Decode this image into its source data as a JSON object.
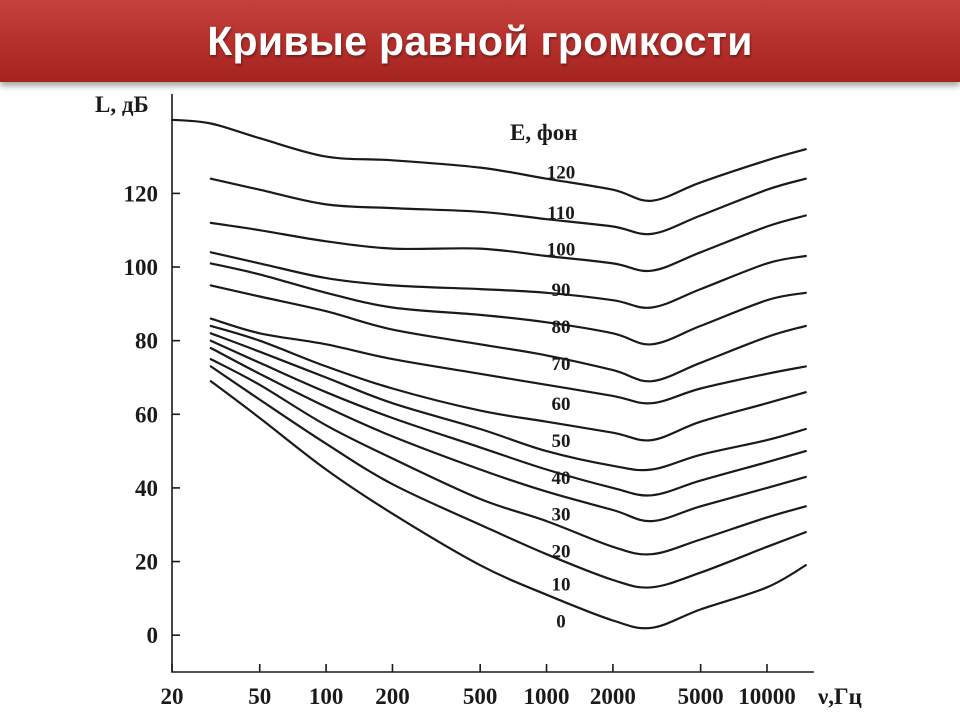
{
  "slide": {
    "title": "Кривые равной громкости"
  },
  "colors": {
    "title_bar": "#b42f2b",
    "title_text": "#ffffff",
    "ink": "#1a1a1a"
  },
  "chart_data": {
    "type": "line",
    "title": "",
    "xlabel": "ν,Гц",
    "ylabel": "L, дБ",
    "legend_title": "E, фон",
    "x_scale": "log",
    "xlim": [
      20,
      16000
    ],
    "ylim": [
      -10,
      147
    ],
    "x_ticks": [
      20,
      50,
      100,
      200,
      500,
      1000,
      2000,
      5000,
      10000
    ],
    "x_tick_labels": [
      "20",
      "50",
      "100",
      "200",
      "500",
      "1000",
      "2000",
      "5000",
      "10000"
    ],
    "y_ticks": [
      0,
      20,
      40,
      60,
      80,
      100,
      120
    ],
    "y_tick_labels": [
      "0",
      "20",
      "40",
      "60",
      "80",
      "100",
      "120"
    ],
    "grid": false,
    "x": [
      20,
      30,
      50,
      100,
      200,
      500,
      1000,
      2000,
      3000,
      5000,
      10000,
      15000
    ],
    "series": [
      {
        "name": "120",
        "values": [
          null,
          124,
          121,
          117,
          116,
          115,
          113,
          111,
          109,
          114,
          121,
          124
        ]
      },
      {
        "name": "110",
        "values": [
          null,
          112,
          110,
          107,
          105,
          105,
          103,
          101,
          99,
          104,
          111,
          114
        ]
      },
      {
        "name": "100",
        "values": [
          null,
          104,
          101,
          97,
          95,
          94,
          93,
          91,
          89,
          94,
          101,
          103
        ]
      },
      {
        "name": "90",
        "values": [
          null,
          101,
          98,
          93,
          89,
          87,
          85,
          82,
          79,
          84,
          91,
          93
        ]
      },
      {
        "name": "80",
        "values": [
          null,
          95,
          92,
          88,
          83,
          79,
          76,
          72,
          69,
          74,
          81,
          84
        ]
      },
      {
        "name": "70",
        "values": [
          null,
          86,
          82,
          79,
          75,
          71,
          68,
          65,
          63,
          67,
          71,
          73
        ]
      },
      {
        "name": "60",
        "values": [
          null,
          84,
          80,
          73,
          67,
          61,
          58,
          55,
          53,
          58,
          63,
          66
        ]
      },
      {
        "name": "50",
        "values": [
          null,
          82,
          77,
          70,
          63,
          56,
          50,
          46,
          45,
          49,
          53,
          56
        ]
      },
      {
        "name": "40",
        "values": [
          null,
          80,
          74,
          66,
          59,
          51,
          45,
          40,
          38,
          42,
          47,
          50
        ]
      },
      {
        "name": "30",
        "values": [
          null,
          78,
          71,
          62,
          54,
          45,
          39,
          34,
          31,
          35,
          40,
          43
        ]
      },
      {
        "name": "20",
        "values": [
          null,
          75,
          68,
          57,
          48,
          37,
          31,
          24,
          22,
          26,
          32,
          35
        ]
      },
      {
        "name": "10",
        "values": [
          null,
          73,
          64,
          52,
          41,
          30,
          22,
          15,
          13,
          17,
          24,
          28
        ]
      },
      {
        "name": "0",
        "values": [
          null,
          69,
          59,
          45,
          33,
          19,
          11,
          4,
          2,
          7,
          13,
          19
        ]
      }
    ],
    "outer_curve": {
      "values": [
        140,
        139,
        135,
        130,
        129,
        127,
        124,
        121,
        118,
        123,
        129,
        132
      ]
    },
    "curve_labels": [
      "120",
      "110",
      "100",
      "90",
      "80",
      "70",
      "60",
      "50",
      "40",
      "30",
      "20",
      "10",
      "0"
    ],
    "curve_label_y": [
      126,
      115,
      105,
      94,
      84,
      74,
      63,
      53,
      43,
      33,
      23,
      14,
      4
    ]
  }
}
